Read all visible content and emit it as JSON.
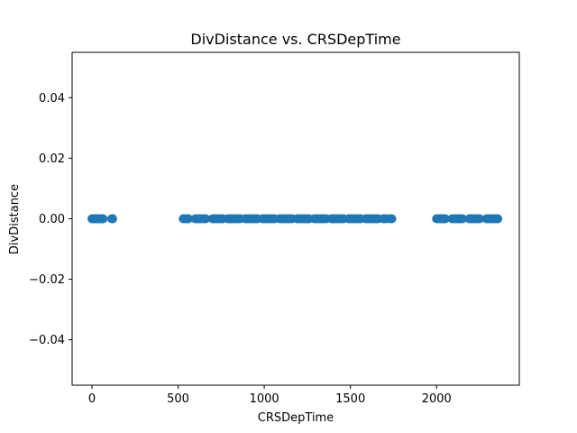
{
  "chart_data": {
    "type": "scatter",
    "title": "DivDistance vs. CRSDepTime",
    "xlabel": "CRSDepTime",
    "ylabel": "DivDistance",
    "xlim": [
      -115,
      2480
    ],
    "ylim": [
      -0.055,
      0.055
    ],
    "x_ticks": [
      0,
      500,
      1000,
      1500,
      2000
    ],
    "x_tick_labels": [
      "0",
      "500",
      "1000",
      "1500",
      "2000"
    ],
    "y_ticks": [
      -0.04,
      -0.02,
      0.0,
      0.02,
      0.04
    ],
    "y_tick_labels": [
      "−0.04",
      "−0.02",
      "0.00",
      "0.02",
      "0.04"
    ],
    "grid": false,
    "marker_color": "#1f77b4",
    "series": [
      {
        "x": [
          0,
          5,
          10,
          15,
          20,
          25,
          30,
          35,
          40,
          45,
          50,
          55,
          60,
          65,
          115,
          120,
          530,
          540,
          550,
          560,
          600,
          610,
          620,
          630,
          640,
          650,
          660,
          700,
          710,
          720,
          730,
          740,
          750,
          760,
          790,
          800,
          810,
          820,
          830,
          840,
          850,
          860,
          890,
          900,
          910,
          920,
          930,
          940,
          950,
          960,
          990,
          1000,
          1010,
          1020,
          1030,
          1040,
          1050,
          1060,
          1090,
          1100,
          1110,
          1120,
          1130,
          1140,
          1150,
          1160,
          1190,
          1200,
          1210,
          1220,
          1230,
          1240,
          1250,
          1260,
          1290,
          1300,
          1310,
          1320,
          1330,
          1340,
          1350,
          1360,
          1390,
          1400,
          1410,
          1420,
          1430,
          1440,
          1450,
          1460,
          1490,
          1500,
          1510,
          1520,
          1530,
          1540,
          1550,
          1560,
          1590,
          1600,
          1610,
          1620,
          1630,
          1640,
          1650,
          1660,
          1690,
          1700,
          1710,
          1730,
          1740,
          2000,
          2010,
          2020,
          2030,
          2040,
          2050,
          2090,
          2100,
          2110,
          2120,
          2130,
          2140,
          2150,
          2190,
          2200,
          2210,
          2220,
          2230,
          2240,
          2250,
          2290,
          2300,
          2310,
          2320,
          2330,
          2340,
          2350,
          2355
        ],
        "y": [
          0,
          0,
          0,
          0,
          0,
          0,
          0,
          0,
          0,
          0,
          0,
          0,
          0,
          0,
          0,
          0,
          0,
          0,
          0,
          0,
          0,
          0,
          0,
          0,
          0,
          0,
          0,
          0,
          0,
          0,
          0,
          0,
          0,
          0,
          0,
          0,
          0,
          0,
          0,
          0,
          0,
          0,
          0,
          0,
          0,
          0,
          0,
          0,
          0,
          0,
          0,
          0,
          0,
          0,
          0,
          0,
          0,
          0,
          0,
          0,
          0,
          0,
          0,
          0,
          0,
          0,
          0,
          0,
          0,
          0,
          0,
          0,
          0,
          0,
          0,
          0,
          0,
          0,
          0,
          0,
          0,
          0,
          0,
          0,
          0,
          0,
          0,
          0,
          0,
          0,
          0,
          0,
          0,
          0,
          0,
          0,
          0,
          0,
          0,
          0,
          0,
          0,
          0,
          0,
          0,
          0,
          0,
          0,
          0,
          0,
          0,
          0,
          0,
          0,
          0,
          0,
          0,
          0,
          0,
          0,
          0,
          0,
          0,
          0,
          0,
          0,
          0,
          0,
          0,
          0,
          0,
          0,
          0,
          0,
          0,
          0,
          0,
          0,
          0
        ]
      }
    ]
  }
}
